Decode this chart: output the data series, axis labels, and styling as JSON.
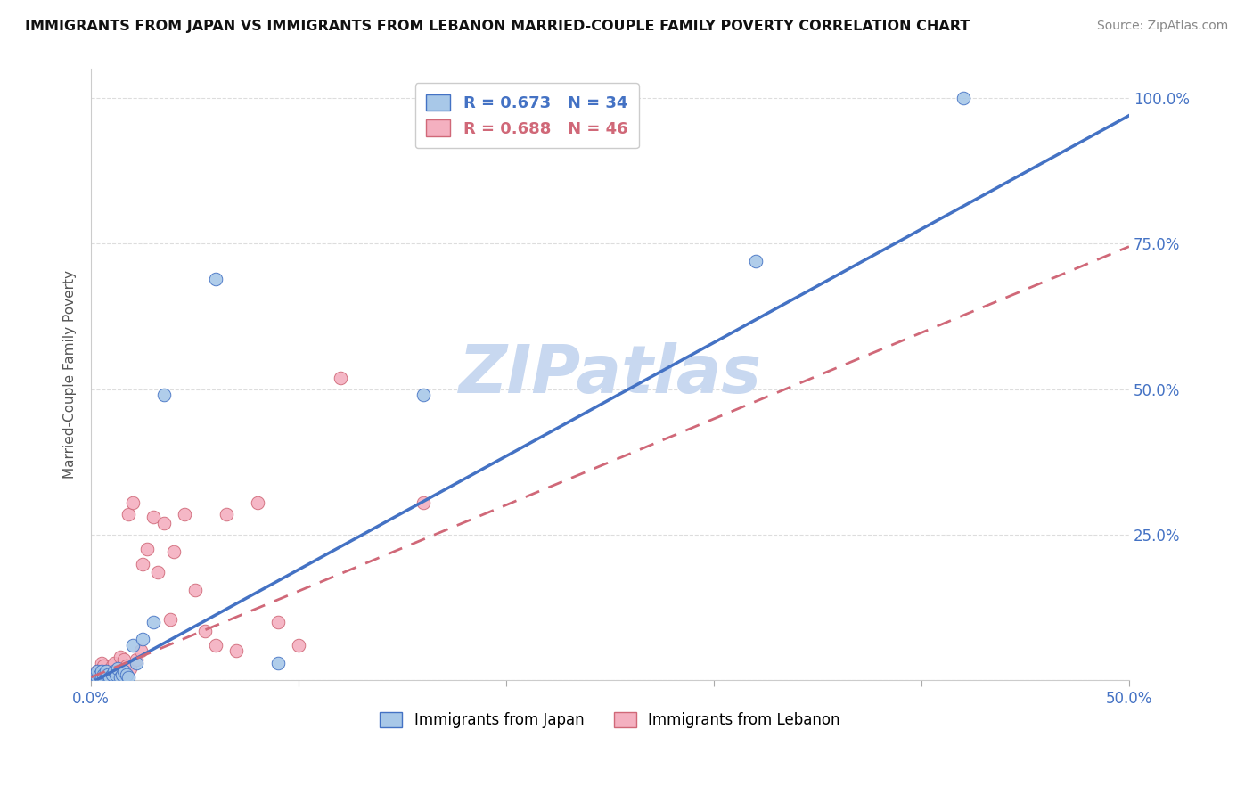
{
  "title": "IMMIGRANTS FROM JAPAN VS IMMIGRANTS FROM LEBANON MARRIED-COUPLE FAMILY POVERTY CORRELATION CHART",
  "source": "Source: ZipAtlas.com",
  "ylabel": "Married-Couple Family Poverty",
  "legend_label_1": "Immigrants from Japan",
  "legend_label_2": "Immigrants from Lebanon",
  "R1": 0.673,
  "N1": 34,
  "R2": 0.688,
  "N2": 46,
  "color_japan": "#a8c8e8",
  "color_lebanon": "#f4b0c0",
  "color_line_japan": "#4472c4",
  "color_line_lebanon": "#d06878",
  "xlim": [
    0,
    0.5
  ],
  "ylim": [
    0,
    1.05
  ],
  "xticks": [
    0.0,
    0.1,
    0.2,
    0.3,
    0.4,
    0.5
  ],
  "xticklabels_show": {
    "0.0": "0.0%",
    "0.5": "50.0%"
  },
  "yticks": [
    0.0,
    0.25,
    0.5,
    0.75,
    1.0
  ],
  "yticklabels_right": [
    "",
    "25.0%",
    "50.0%",
    "75.0%",
    "100.0%"
  ],
  "japan_x": [
    0.001,
    0.002,
    0.003,
    0.003,
    0.004,
    0.004,
    0.005,
    0.005,
    0.006,
    0.006,
    0.007,
    0.007,
    0.008,
    0.008,
    0.009,
    0.01,
    0.011,
    0.012,
    0.013,
    0.014,
    0.015,
    0.016,
    0.017,
    0.018,
    0.02,
    0.022,
    0.025,
    0.03,
    0.035,
    0.06,
    0.09,
    0.16,
    0.32,
    0.42
  ],
  "japan_y": [
    0.005,
    0.01,
    0.005,
    0.015,
    0.005,
    0.01,
    0.005,
    0.015,
    0.01,
    0.005,
    0.01,
    0.015,
    0.005,
    0.01,
    0.005,
    0.01,
    0.015,
    0.01,
    0.02,
    0.005,
    0.01,
    0.015,
    0.01,
    0.005,
    0.06,
    0.03,
    0.07,
    0.1,
    0.49,
    0.69,
    0.03,
    0.49,
    0.72,
    1.0
  ],
  "lebanon_x": [
    0.001,
    0.002,
    0.003,
    0.003,
    0.004,
    0.004,
    0.005,
    0.005,
    0.006,
    0.006,
    0.007,
    0.007,
    0.008,
    0.008,
    0.009,
    0.01,
    0.011,
    0.012,
    0.013,
    0.014,
    0.015,
    0.016,
    0.017,
    0.018,
    0.019,
    0.02,
    0.022,
    0.024,
    0.025,
    0.027,
    0.03,
    0.032,
    0.035,
    0.038,
    0.04,
    0.045,
    0.05,
    0.055,
    0.06,
    0.065,
    0.07,
    0.08,
    0.09,
    0.1,
    0.12,
    0.16
  ],
  "lebanon_y": [
    0.005,
    0.01,
    0.005,
    0.015,
    0.005,
    0.01,
    0.03,
    0.005,
    0.01,
    0.025,
    0.01,
    0.015,
    0.005,
    0.01,
    0.015,
    0.025,
    0.03,
    0.01,
    0.015,
    0.04,
    0.02,
    0.035,
    0.025,
    0.285,
    0.02,
    0.305,
    0.035,
    0.05,
    0.2,
    0.225,
    0.28,
    0.185,
    0.27,
    0.105,
    0.22,
    0.285,
    0.155,
    0.085,
    0.06,
    0.285,
    0.05,
    0.305,
    0.1,
    0.06,
    0.52,
    0.305
  ],
  "line_japan_slope": 1.95,
  "line_japan_intercept": -0.005,
  "line_lebanon_slope": 1.48,
  "line_lebanon_intercept": 0.005,
  "watermark": "ZIPatlas",
  "watermark_color": "#c8d8f0",
  "background_color": "#ffffff",
  "grid_color": "#dddddd"
}
